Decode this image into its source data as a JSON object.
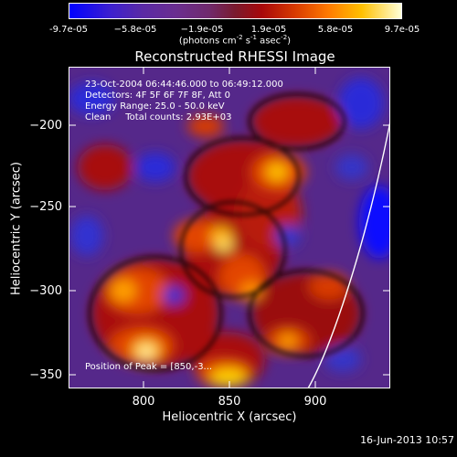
{
  "colorbar": {
    "ticks": [
      "-9.7e-05",
      "−5.8e-05",
      "−1.9e-05",
      "1.9e-05",
      "5.8e-05",
      "9.7e-05"
    ],
    "unit_label": "(photons cm",
    "unit_exp1": "-2",
    "unit_s": " s",
    "unit_exp2": "-1",
    "unit_asec": " asec",
    "unit_exp3": "-2",
    "unit_close": ")"
  },
  "info": {
    "line1": "23-Oct-2004 06:44:46.000 to 06:49:12.000",
    "line2": "Detectors: 4F 5F 6F 7F 8F, Att 0",
    "line3": "Energy Range: 25.0 - 50.0 keV",
    "line4": "Clean     Total counts: 2.93E+03",
    "peak": "Position of Peak = [850,-3..."
  },
  "timestamp": "16-Jun-2013 10:57",
  "chart_data": {
    "type": "heatmap",
    "title": "Reconstructed RHESSI Image",
    "xlabel": "Heliocentric X (arcsec)",
    "ylabel": "Heliocentric Y (arcsec)",
    "xlim": [
      755,
      945
    ],
    "ylim": [
      -355,
      -165
    ],
    "xticks": [
      800,
      850,
      900
    ],
    "yticks": [
      -200,
      -250,
      -300,
      -350
    ],
    "xtick_labels": [
      "800",
      "850",
      "900"
    ],
    "ytick_labels": [
      "−200",
      "−250",
      "−300",
      "−350"
    ],
    "colorbar_range": [
      -9.7e-05,
      9.7e-05
    ],
    "peak_position": [
      850,
      null
    ],
    "colors": {
      "low": "#0000ff",
      "mid": "#6a2e90",
      "high_dark": "#a8080a",
      "high": "#ff7a00",
      "peak": "#ffffd8"
    }
  }
}
